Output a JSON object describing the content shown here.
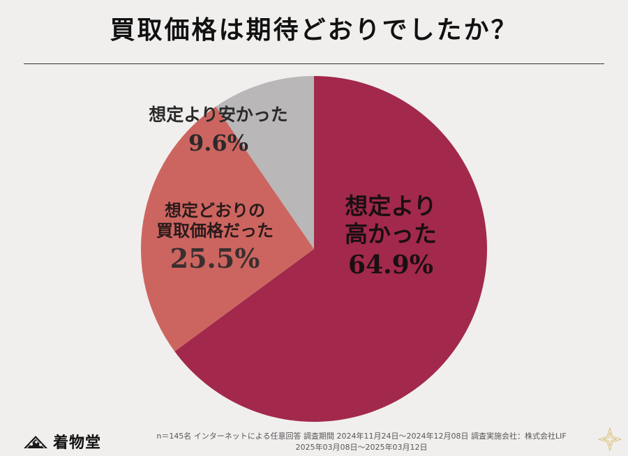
{
  "title": "買取価格は期待どおりでしたか？",
  "chart_data": {
    "type": "pie",
    "slices": [
      {
        "name": "想定より高かった",
        "label_lines": [
          "想定より",
          "高かった"
        ],
        "value": 64.9,
        "label": "64.9%",
        "color": "#a2294b"
      },
      {
        "name": "想定どおりの買取価格だった",
        "label_lines": [
          "想定どおりの",
          "買取価格だった"
        ],
        "value": 25.5,
        "label": "25.5%",
        "color": "#cc6560"
      },
      {
        "name": "想定より安かった",
        "label_lines": [
          "想定より安かった"
        ],
        "value": 9.6,
        "label": "9.6%",
        "color": "#b9b7b8"
      }
    ],
    "start_angle_deg": 0,
    "direction": "clockwise"
  },
  "footer": {
    "line1": "n＝145名 インターネットによる任意回答 調査期間 2024年11月24日〜2024年12月08日 調査実施会社：株式会社LIF",
    "line2": "2025年03月08日〜2025年03月12日"
  },
  "brand": {
    "name": "着物堂",
    "icon": "fan-logo-icon"
  }
}
